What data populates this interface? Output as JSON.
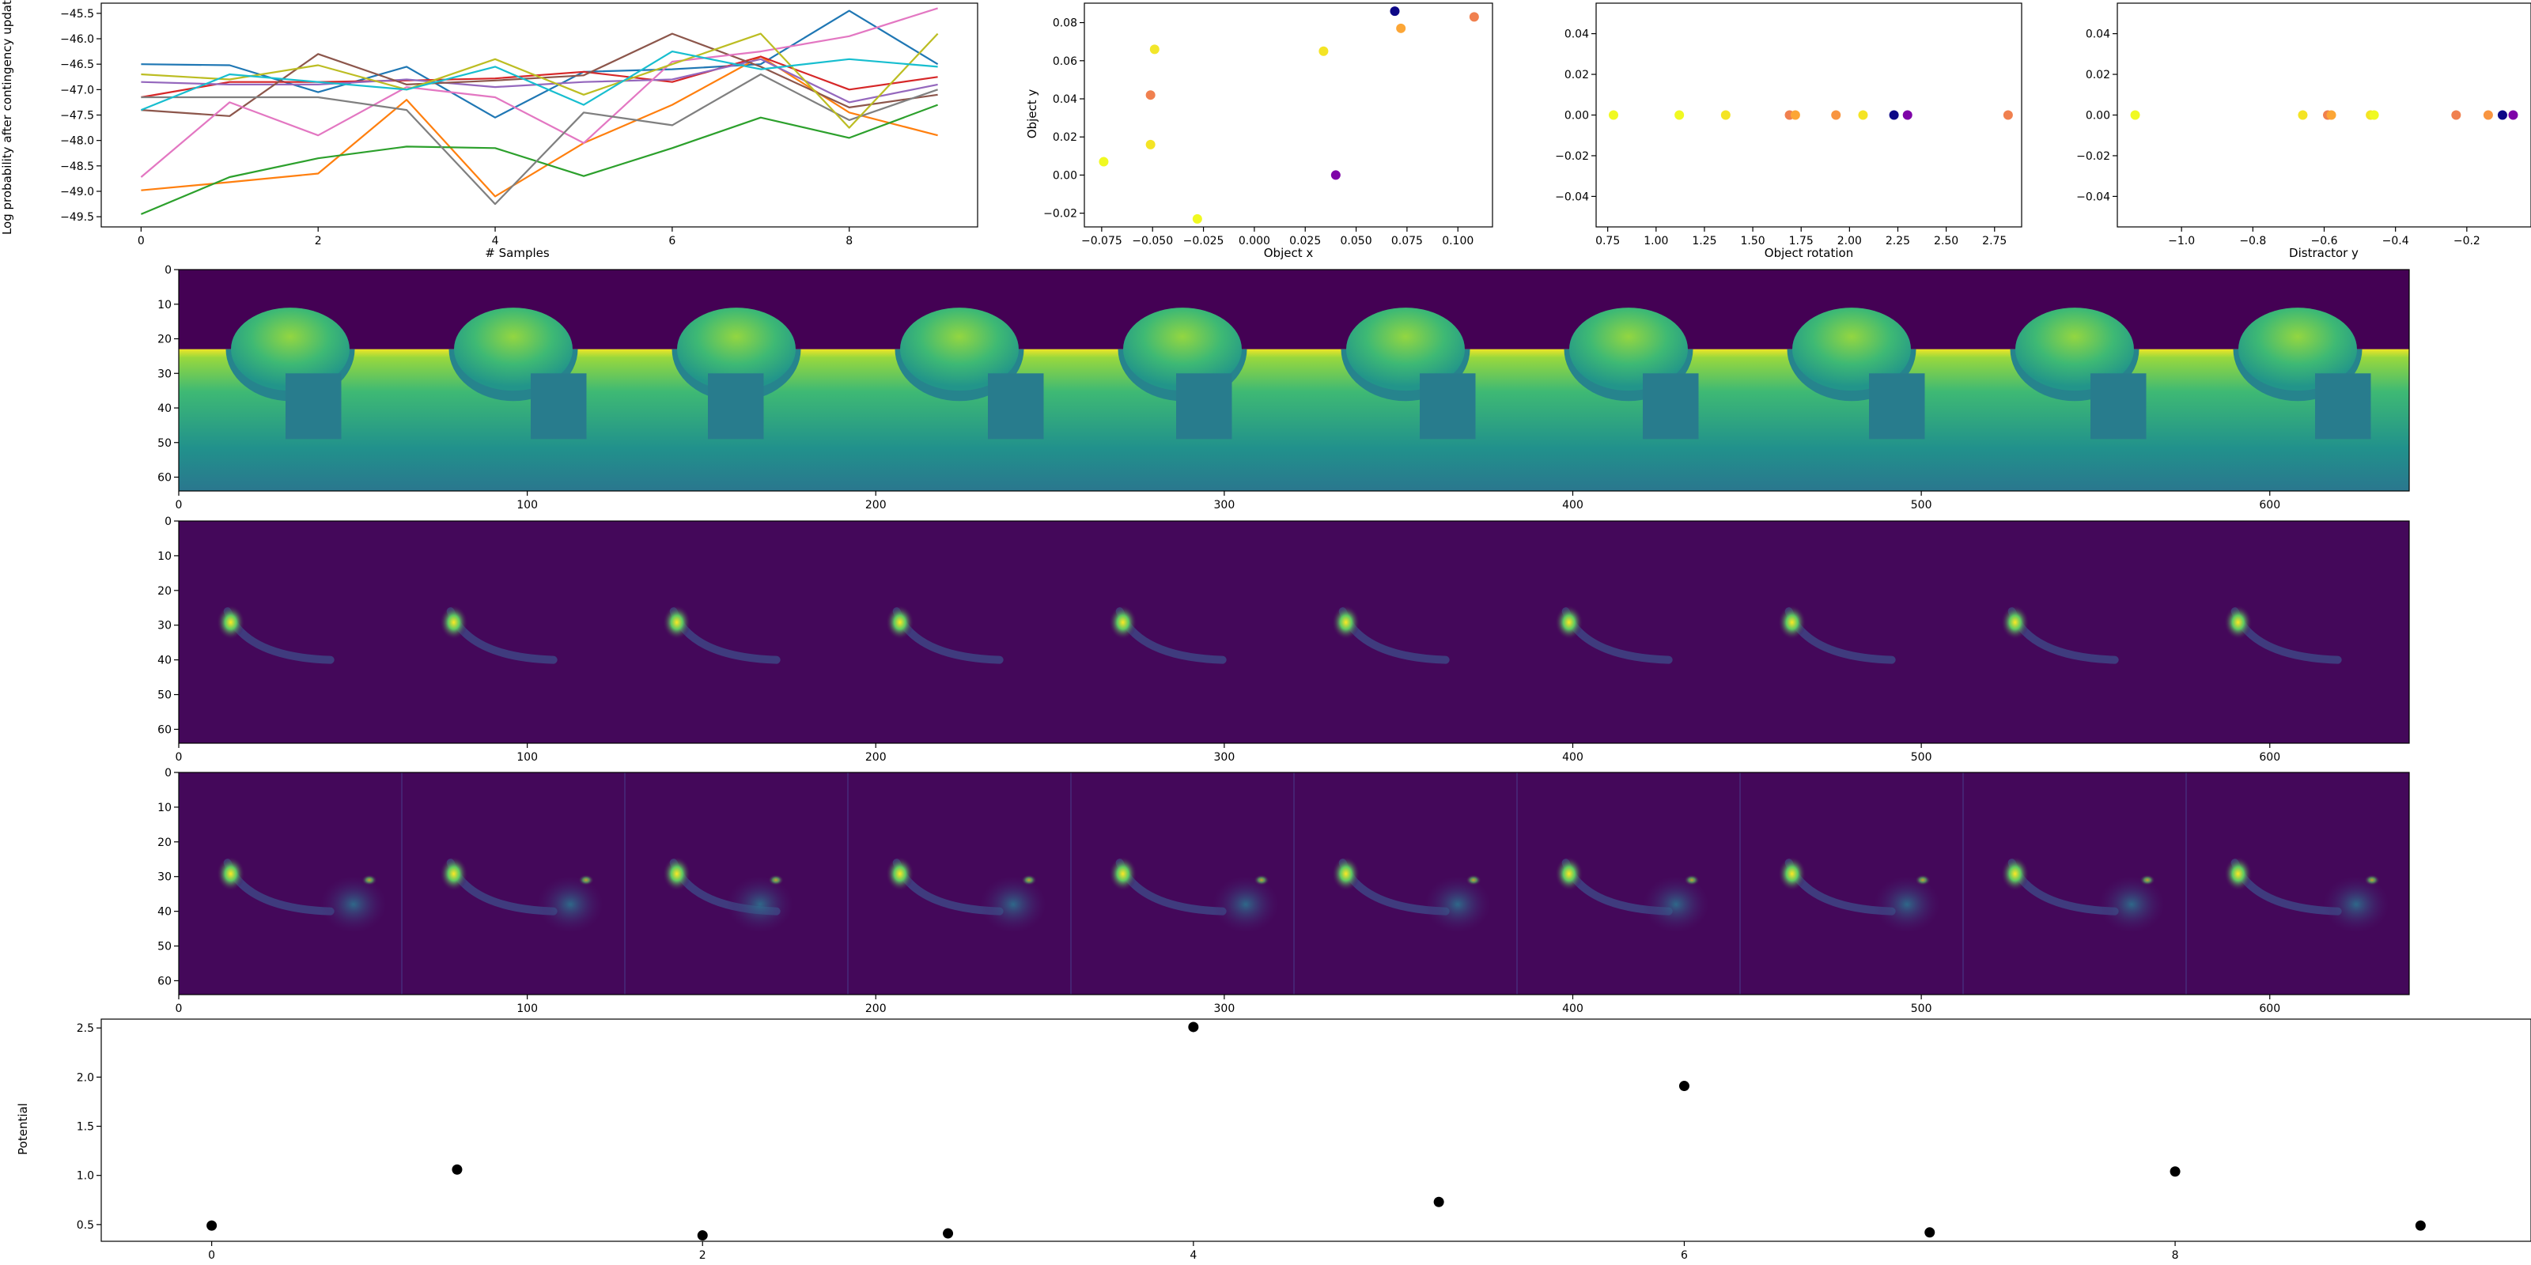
{
  "chart_data": [
    {
      "type": "line",
      "xlabel": "# Samples",
      "ylabel": "Log probability after contingency update",
      "xlim": [
        -0.45,
        9.45
      ],
      "ylim": [
        -49.7,
        -45.3
      ],
      "xticks": [
        "0",
        "2",
        "4",
        "6",
        "8"
      ],
      "yticks": [
        "−49.5",
        "−49.0",
        "−48.5",
        "−48.0",
        "−47.5",
        "−47.0",
        "−46.5",
        "−46.0",
        "−45.5"
      ],
      "x": [
        0,
        1,
        2,
        3,
        4,
        5,
        6,
        7,
        8,
        9
      ],
      "series": [
        {
          "color": "#1f77b4",
          "values": [
            -46.5,
            -46.52,
            -47.05,
            -46.55,
            -47.55,
            -46.65,
            -46.6,
            -46.5,
            -45.45,
            -46.5
          ]
        },
        {
          "color": "#ff7f0e",
          "values": [
            -48.98,
            -48.82,
            -48.65,
            -47.2,
            -49.1,
            -48.05,
            -47.3,
            -46.35,
            -47.45,
            -47.9
          ]
        },
        {
          "color": "#2ca02c",
          "values": [
            -49.45,
            -48.72,
            -48.35,
            -48.12,
            -48.15,
            -48.7,
            -48.15,
            -47.55,
            -47.95,
            -47.3
          ]
        },
        {
          "color": "#d62728",
          "values": [
            -47.15,
            -46.85,
            -46.85,
            -46.82,
            -46.78,
            -46.65,
            -46.85,
            -46.35,
            -47.0,
            -46.75
          ]
        },
        {
          "color": "#9467bd",
          "values": [
            -46.85,
            -46.9,
            -46.9,
            -46.8,
            -46.95,
            -46.85,
            -46.8,
            -46.4,
            -47.25,
            -46.9
          ]
        },
        {
          "color": "#8c564b",
          "values": [
            -47.4,
            -47.52,
            -46.3,
            -46.9,
            -46.82,
            -46.72,
            -45.9,
            -46.55,
            -47.35,
            -47.1
          ]
        },
        {
          "color": "#e377c2",
          "values": [
            -48.72,
            -47.25,
            -47.9,
            -46.95,
            -47.15,
            -48.05,
            -46.45,
            -46.25,
            -45.95,
            -45.4
          ]
        },
        {
          "color": "#7f7f7f",
          "values": [
            -47.15,
            -47.15,
            -47.15,
            -47.4,
            -49.25,
            -47.45,
            -47.7,
            -46.7,
            -47.6,
            -47.0
          ]
        },
        {
          "color": "#bcbd22",
          "values": [
            -46.7,
            -46.8,
            -46.52,
            -47.0,
            -46.4,
            -47.1,
            -46.5,
            -45.9,
            -47.75,
            -45.9
          ]
        },
        {
          "color": "#17becf",
          "values": [
            -47.4,
            -46.7,
            -46.85,
            -47.0,
            -46.55,
            -47.3,
            -46.25,
            -46.6,
            -46.4,
            -46.55
          ]
        }
      ]
    },
    {
      "type": "scatter",
      "xlabel": "Object x",
      "ylabel": "Object y",
      "xlim": [
        -0.0835,
        0.117
      ],
      "ylim": [
        -0.0272,
        0.0902
      ],
      "xticks": [
        "−0.075",
        "−0.050",
        "−0.025",
        "0.000",
        "0.025",
        "0.050",
        "0.075",
        "0.100"
      ],
      "yticks": [
        "−0.02",
        "0.00",
        "0.02",
        "0.04",
        "0.06",
        "0.08"
      ],
      "points": [
        {
          "x": -0.074,
          "y": 0.007,
          "color": "#f0f921"
        },
        {
          "x": -0.051,
          "y": 0.042,
          "color": "#f0804f"
        },
        {
          "x": -0.051,
          "y": 0.016,
          "color": "#f4e425"
        },
        {
          "x": -0.049,
          "y": 0.066,
          "color": "#f2e62a"
        },
        {
          "x": -0.028,
          "y": -0.023,
          "color": "#f0f921"
        },
        {
          "x": 0.034,
          "y": 0.065,
          "color": "#f4e425"
        },
        {
          "x": 0.04,
          "y": 0.0,
          "color": "#7e03a8"
        },
        {
          "x": 0.069,
          "y": 0.086,
          "color": "#0d0887"
        },
        {
          "x": 0.072,
          "y": 0.077,
          "color": "#fca636"
        },
        {
          "x": 0.108,
          "y": 0.083,
          "color": "#f0804f"
        }
      ]
    },
    {
      "type": "scatter",
      "xlabel": "Object rotation",
      "ylabel": "",
      "xlim": [
        0.69,
        2.89
      ],
      "ylim": [
        -0.055,
        0.055
      ],
      "xticks": [
        "0.75",
        "1.00",
        "1.25",
        "1.50",
        "1.75",
        "2.00",
        "2.25",
        "2.50",
        "2.75"
      ],
      "yticks": [
        "−0.04",
        "−0.02",
        "0.00",
        "0.02",
        "0.04"
      ],
      "points": [
        {
          "x": 0.78,
          "y": 0.0,
          "color": "#f0f921"
        },
        {
          "x": 1.12,
          "y": 0.0,
          "color": "#f0f921"
        },
        {
          "x": 1.36,
          "y": 0.0,
          "color": "#f4e425"
        },
        {
          "x": 1.69,
          "y": 0.0,
          "color": "#f0804f"
        },
        {
          "x": 1.72,
          "y": 0.0,
          "color": "#fca636"
        },
        {
          "x": 1.93,
          "y": 0.0,
          "color": "#f89540"
        },
        {
          "x": 2.07,
          "y": 0.0,
          "color": "#f4e425"
        },
        {
          "x": 2.23,
          "y": 0.0,
          "color": "#0d0887"
        },
        {
          "x": 2.3,
          "y": 0.0,
          "color": "#7e03a8"
        },
        {
          "x": 2.82,
          "y": 0.0,
          "color": "#f0804f"
        }
      ]
    },
    {
      "type": "scatter",
      "xlabel": "Distractor y",
      "ylabel": "",
      "xlim": [
        -1.18,
        -0.02
      ],
      "ylim": [
        -0.055,
        0.055
      ],
      "xticks": [
        "−1.0",
        "−0.8",
        "−0.6",
        "−0.4",
        "−0.2"
      ],
      "yticks": [
        "−0.04",
        "−0.02",
        "0.00",
        "0.02",
        "0.04"
      ],
      "points": [
        {
          "x": -1.13,
          "y": 0.0,
          "color": "#f0f921"
        },
        {
          "x": -0.66,
          "y": 0.0,
          "color": "#f4e425"
        },
        {
          "x": -0.59,
          "y": 0.0,
          "color": "#f0804f"
        },
        {
          "x": -0.58,
          "y": 0.0,
          "color": "#fca636"
        },
        {
          "x": -0.47,
          "y": 0.0,
          "color": "#f4e425"
        },
        {
          "x": -0.46,
          "y": 0.0,
          "color": "#f0f921"
        },
        {
          "x": -0.23,
          "y": 0.0,
          "color": "#f0804f"
        },
        {
          "x": -0.14,
          "y": 0.0,
          "color": "#f89540"
        },
        {
          "x": -0.1,
          "y": 0.0,
          "color": "#0d0887"
        },
        {
          "x": -0.07,
          "y": 0.0,
          "color": "#7e03a8"
        }
      ]
    },
    {
      "type": "heatmap",
      "colormap": "viridis",
      "content": "depth render: bowl on a table with a distractor box, 10 tiles",
      "x_extent": [
        0,
        640
      ],
      "y_extent": [
        0,
        64
      ],
      "xticks": [
        "0",
        "100",
        "200",
        "300",
        "400",
        "500",
        "600"
      ],
      "yticks": [
        "0",
        "10",
        "20",
        "30",
        "40",
        "50",
        "60"
      ],
      "tiles": 10
    },
    {
      "type": "heatmap",
      "colormap": "viridis",
      "content": "bowl rim response map, 10 tiles",
      "x_extent": [
        0,
        640
      ],
      "y_extent": [
        0,
        64
      ],
      "xticks": [
        "0",
        "100",
        "200",
        "300",
        "400",
        "500",
        "600"
      ],
      "yticks": [
        "0",
        "10",
        "20",
        "30",
        "40",
        "50",
        "60"
      ],
      "tiles": 10
    },
    {
      "type": "heatmap",
      "colormap": "viridis",
      "content": "bowl rim plus distractor response map, 10 tiles",
      "x_extent": [
        0,
        640
      ],
      "y_extent": [
        0,
        64
      ],
      "xticks": [
        "0",
        "100",
        "200",
        "300",
        "400",
        "500",
        "600"
      ],
      "yticks": [
        "0",
        "10",
        "20",
        "30",
        "40",
        "50",
        "60"
      ],
      "tiles": 10
    },
    {
      "type": "scatter",
      "xlabel": "",
      "ylabel": "Potential",
      "xlim": [
        -0.45,
        9.45
      ],
      "ylim": [
        0.33,
        2.59
      ],
      "xticks": [
        "0",
        "2",
        "4",
        "6",
        "8"
      ],
      "yticks": [
        "0.5",
        "1.0",
        "1.5",
        "2.0",
        "2.5"
      ],
      "points": [
        {
          "x": 0,
          "y": 0.49,
          "color": "#000000"
        },
        {
          "x": 1,
          "y": 1.06,
          "color": "#000000"
        },
        {
          "x": 2,
          "y": 0.39,
          "color": "#000000"
        },
        {
          "x": 3,
          "y": 0.41,
          "color": "#000000"
        },
        {
          "x": 4,
          "y": 2.51,
          "color": "#000000"
        },
        {
          "x": 5,
          "y": 0.73,
          "color": "#000000"
        },
        {
          "x": 6,
          "y": 1.91,
          "color": "#000000"
        },
        {
          "x": 7,
          "y": 0.42,
          "color": "#000000"
        },
        {
          "x": 8,
          "y": 1.04,
          "color": "#000000"
        },
        {
          "x": 9,
          "y": 0.49,
          "color": "#000000"
        }
      ]
    }
  ]
}
